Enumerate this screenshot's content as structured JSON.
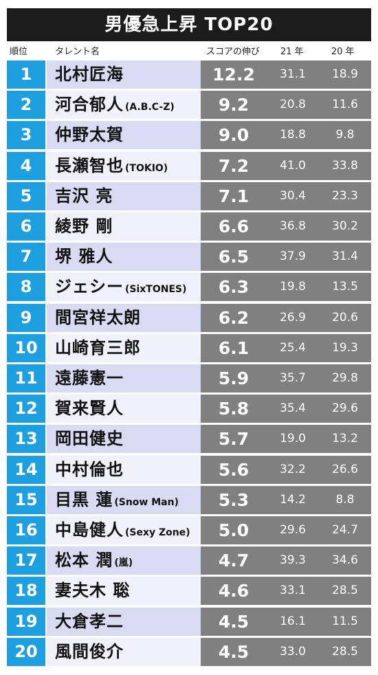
{
  "title": "男優急上昇 TOP20",
  "header": {
    "rank": "順位",
    "talent": "タレント名",
    "score": "スコアの伸び",
    "y21": "21 年",
    "y20": "20 年"
  },
  "chart_data": {
    "type": "table",
    "columns": [
      "順位",
      "タレント名",
      "スコアの伸び",
      "21 年",
      "20 年"
    ],
    "rows": [
      {
        "rank": "1",
        "name": "北村匠海",
        "group": "",
        "score": "12.2",
        "y21": "31.1",
        "y20": "18.9"
      },
      {
        "rank": "2",
        "name": "河合郁人",
        "group": "(A.B.C-Z)",
        "score": "9.2",
        "y21": "20.8",
        "y20": "11.6"
      },
      {
        "rank": "3",
        "name": "仲野太賀",
        "group": "",
        "score": "9.0",
        "y21": "18.8",
        "y20": "9.8"
      },
      {
        "rank": "4",
        "name": "長瀬智也",
        "group": "(TOKIO)",
        "score": "7.2",
        "y21": "41.0",
        "y20": "33.8"
      },
      {
        "rank": "5",
        "name": "吉沢 亮",
        "group": "",
        "score": "7.1",
        "y21": "30.4",
        "y20": "23.3"
      },
      {
        "rank": "6",
        "name": "綾野 剛",
        "group": "",
        "score": "6.6",
        "y21": "36.8",
        "y20": "30.2"
      },
      {
        "rank": "7",
        "name": "堺 雅人",
        "group": "",
        "score": "6.5",
        "y21": "37.9",
        "y20": "31.4"
      },
      {
        "rank": "8",
        "name": "ジェシー",
        "group": "(SixTONES)",
        "score": "6.3",
        "y21": "19.8",
        "y20": "13.5"
      },
      {
        "rank": "9",
        "name": "間宮祥太朗",
        "group": "",
        "score": "6.2",
        "y21": "26.9",
        "y20": "20.6"
      },
      {
        "rank": "10",
        "name": "山崎育三郎",
        "group": "",
        "score": "6.1",
        "y21": "25.4",
        "y20": "19.3"
      },
      {
        "rank": "11",
        "name": "遠藤憲一",
        "group": "",
        "score": "5.9",
        "y21": "35.7",
        "y20": "29.8"
      },
      {
        "rank": "12",
        "name": "賀来賢人",
        "group": "",
        "score": "5.8",
        "y21": "35.4",
        "y20": "29.6"
      },
      {
        "rank": "13",
        "name": "岡田健史",
        "group": "",
        "score": "5.7",
        "y21": "19.0",
        "y20": "13.2"
      },
      {
        "rank": "14",
        "name": "中村倫也",
        "group": "",
        "score": "5.6",
        "y21": "32.2",
        "y20": "26.6"
      },
      {
        "rank": "15",
        "name": "目黒 蓮",
        "group": "(Snow Man)",
        "score": "5.3",
        "y21": "14.2",
        "y20": "8.8"
      },
      {
        "rank": "16",
        "name": "中島健人",
        "group": "(Sexy Zone)",
        "score": "5.0",
        "y21": "29.6",
        "y20": "24.7"
      },
      {
        "rank": "17",
        "name": "松本 潤",
        "group": "(嵐)",
        "score": "4.7",
        "y21": "39.3",
        "y20": "34.6"
      },
      {
        "rank": "18",
        "name": "妻夫木 聡",
        "group": "",
        "score": "4.6",
        "y21": "33.1",
        "y20": "28.5"
      },
      {
        "rank": "19",
        "name": "大倉孝二",
        "group": "",
        "score": "4.5",
        "y21": "16.1",
        "y20": "11.5"
      },
      {
        "rank": "20",
        "name": "風間俊介",
        "group": "",
        "score": "4.5",
        "y21": "33.0",
        "y20": "28.5"
      }
    ]
  },
  "colors": {
    "title_bg": "#1c1c1c",
    "rank_bg": "#1e9fe0",
    "name_bg_odd": "#d9dbf2",
    "name_bg_even": "#f1f1fb",
    "score_bg": "#808080"
  }
}
